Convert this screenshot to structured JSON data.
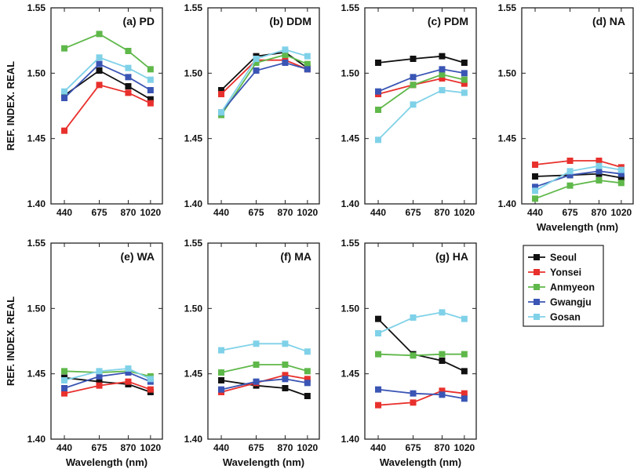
{
  "colors": {
    "Seoul": "#111111",
    "Yonsei": "#e8302c",
    "Anmyeon": "#5fb84a",
    "Gwangju": "#3a55b4",
    "Gosan": "#7fd1e8"
  },
  "legend": [
    "Seoul",
    "Yonsei",
    "Anmyeon",
    "Gwangju",
    "Gosan"
  ],
  "chart_data": [
    {
      "type": "line",
      "title": "(a) PD",
      "x": [
        440,
        675,
        870,
        1020
      ],
      "xlabel": "",
      "ylabel": "REF. INDEX. REAL",
      "ylim": [
        1.4,
        1.55
      ],
      "yticks": [
        "1.40",
        "1.45",
        "1.50",
        "1.55"
      ],
      "xticks": [
        "440",
        "675",
        "870",
        "1020"
      ],
      "series": [
        {
          "name": "Seoul",
          "values": [
            1.483,
            1.502,
            1.49,
            1.48
          ]
        },
        {
          "name": "Yonsei",
          "values": [
            1.456,
            1.491,
            1.485,
            1.477
          ]
        },
        {
          "name": "Anmyeon",
          "values": [
            1.519,
            1.53,
            1.517,
            1.503
          ]
        },
        {
          "name": "Gwangju",
          "values": [
            1.481,
            1.507,
            1.497,
            1.487
          ]
        },
        {
          "name": "Gosan",
          "values": [
            1.486,
            1.512,
            1.504,
            1.495
          ]
        }
      ]
    },
    {
      "type": "line",
      "title": "(b) DDM",
      "x": [
        440,
        675,
        870,
        1020
      ],
      "xlabel": "",
      "ylabel": "",
      "ylim": [
        1.4,
        1.55
      ],
      "yticks": [
        "1.40",
        "1.45",
        "1.50",
        "1.55"
      ],
      "xticks": [
        "440",
        "675",
        "870",
        "1020"
      ],
      "series": [
        {
          "name": "Seoul",
          "values": [
            1.487,
            1.513,
            1.516,
            1.504
          ]
        },
        {
          "name": "Yonsei",
          "values": [
            1.484,
            1.51,
            1.51,
            1.503
          ]
        },
        {
          "name": "Anmyeon",
          "values": [
            1.468,
            1.508,
            1.514,
            1.507
          ]
        },
        {
          "name": "Gwangju",
          "values": [
            1.47,
            1.502,
            1.508,
            1.503
          ]
        },
        {
          "name": "Gosan",
          "values": [
            1.47,
            1.511,
            1.518,
            1.513
          ]
        }
      ]
    },
    {
      "type": "line",
      "title": "(c) PDM",
      "x": [
        440,
        675,
        870,
        1020
      ],
      "xlabel": "",
      "ylabel": "",
      "ylim": [
        1.4,
        1.55
      ],
      "yticks": [
        "1.40",
        "1.45",
        "1.50",
        "1.55"
      ],
      "xticks": [
        "440",
        "675",
        "870",
        "1020"
      ],
      "series": [
        {
          "name": "Seoul",
          "values": [
            1.508,
            1.511,
            1.513,
            1.508
          ]
        },
        {
          "name": "Yonsei",
          "values": [
            1.484,
            1.491,
            1.496,
            1.492
          ]
        },
        {
          "name": "Anmyeon",
          "values": [
            1.472,
            1.491,
            1.499,
            1.495
          ]
        },
        {
          "name": "Gwangju",
          "values": [
            1.486,
            1.497,
            1.503,
            1.5
          ]
        },
        {
          "name": "Gosan",
          "values": [
            1.449,
            1.476,
            1.487,
            1.485
          ]
        }
      ]
    },
    {
      "type": "line",
      "title": "(d) NA",
      "x": [
        440,
        675,
        870,
        1020
      ],
      "xlabel": "Wavelength (nm)",
      "ylabel": "",
      "ylim": [
        1.4,
        1.55
      ],
      "yticks": [
        "1.40",
        "1.45",
        "1.50",
        "1.55"
      ],
      "xticks": [
        "440",
        "675",
        "870",
        "1020"
      ],
      "series": [
        {
          "name": "Seoul",
          "values": [
            1.421,
            1.422,
            1.423,
            1.42
          ]
        },
        {
          "name": "Yonsei",
          "values": [
            1.43,
            1.433,
            1.433,
            1.428
          ]
        },
        {
          "name": "Anmyeon",
          "values": [
            1.404,
            1.414,
            1.418,
            1.416
          ]
        },
        {
          "name": "Gwangju",
          "values": [
            1.413,
            1.422,
            1.425,
            1.423
          ]
        },
        {
          "name": "Gosan",
          "values": [
            1.41,
            1.425,
            1.429,
            1.426
          ]
        }
      ]
    },
    {
      "type": "line",
      "title": "(e) WA",
      "x": [
        440,
        675,
        870,
        1020
      ],
      "xlabel": "Wavelength (nm)",
      "ylabel": "REF. INDEX. REAL",
      "ylim": [
        1.4,
        1.55
      ],
      "yticks": [
        "1.40",
        "1.45",
        "1.50",
        "1.55"
      ],
      "xticks": [
        "440",
        "675",
        "870",
        "1020"
      ],
      "series": [
        {
          "name": "Seoul",
          "values": [
            1.447,
            1.444,
            1.442,
            1.436
          ]
        },
        {
          "name": "Yonsei",
          "values": [
            1.435,
            1.441,
            1.444,
            1.438
          ]
        },
        {
          "name": "Anmyeon",
          "values": [
            1.452,
            1.451,
            1.452,
            1.448
          ]
        },
        {
          "name": "Gwangju",
          "values": [
            1.439,
            1.448,
            1.451,
            1.444
          ]
        },
        {
          "name": "Gosan",
          "values": [
            1.445,
            1.452,
            1.454,
            1.446
          ]
        }
      ]
    },
    {
      "type": "line",
      "title": "(f) MA",
      "x": [
        440,
        675,
        870,
        1020
      ],
      "xlabel": "Wavelength (nm)",
      "ylabel": "",
      "ylim": [
        1.4,
        1.55
      ],
      "yticks": [
        "1.40",
        "1.45",
        "1.50",
        "1.55"
      ],
      "xticks": [
        "440",
        "675",
        "870",
        "1020"
      ],
      "series": [
        {
          "name": "Seoul",
          "values": [
            1.445,
            1.441,
            1.439,
            1.433
          ]
        },
        {
          "name": "Yonsei",
          "values": [
            1.436,
            1.443,
            1.449,
            1.446
          ]
        },
        {
          "name": "Anmyeon",
          "values": [
            1.451,
            1.457,
            1.457,
            1.452
          ]
        },
        {
          "name": "Gwangju",
          "values": [
            1.438,
            1.444,
            1.446,
            1.443
          ]
        },
        {
          "name": "Gosan",
          "values": [
            1.468,
            1.473,
            1.473,
            1.467
          ]
        }
      ]
    },
    {
      "type": "line",
      "title": "(g) HA",
      "x": [
        440,
        675,
        870,
        1020
      ],
      "xlabel": "Wavelength (nm)",
      "ylabel": "",
      "ylim": [
        1.4,
        1.55
      ],
      "yticks": [
        "1.40",
        "1.45",
        "1.50",
        "1.55"
      ],
      "xticks": [
        "440",
        "675",
        "870",
        "1020"
      ],
      "series": [
        {
          "name": "Seoul",
          "values": [
            1.492,
            1.465,
            1.46,
            1.452
          ]
        },
        {
          "name": "Yonsei",
          "values": [
            1.426,
            1.428,
            1.437,
            1.435
          ]
        },
        {
          "name": "Anmyeon",
          "values": [
            1.465,
            1.464,
            1.465,
            1.465
          ]
        },
        {
          "name": "Gwangju",
          "values": [
            1.438,
            1.435,
            1.434,
            1.431
          ]
        },
        {
          "name": "Gosan",
          "values": [
            1.481,
            1.493,
            1.497,
            1.492
          ]
        }
      ]
    }
  ]
}
